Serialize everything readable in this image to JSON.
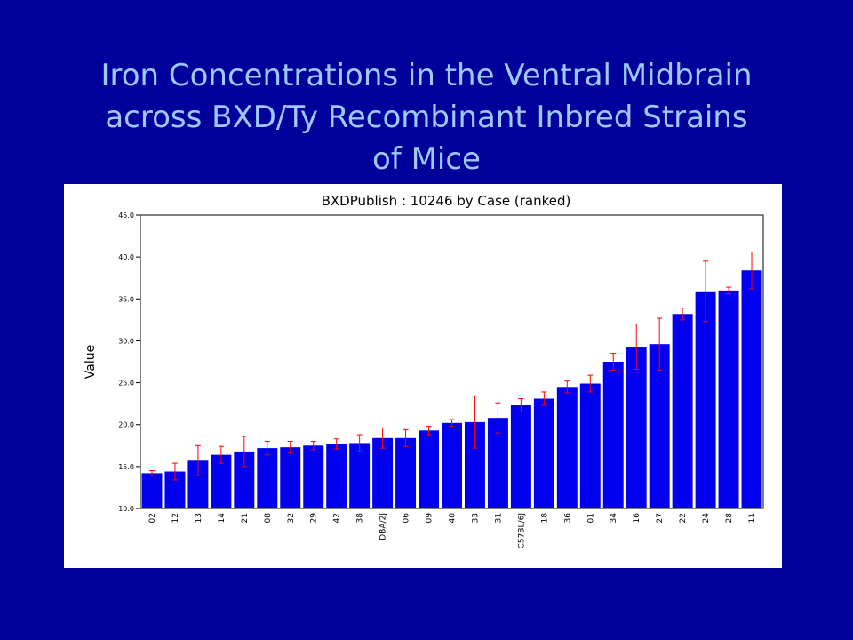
{
  "slide": {
    "title_lines": [
      "Iron Concentrations in the Ventral Midbrain",
      "across BXD/Ty Recombinant Inbred Strains",
      "of Mice"
    ]
  },
  "colors": {
    "background": "#00009a",
    "title": "#9ec8ff",
    "bar": "#0000ee",
    "error_bar": "#ff0000"
  },
  "chart_data": {
    "type": "bar",
    "title": "BXDPublish : 10246 by Case (ranked)",
    "xlabel": "",
    "ylabel": "Value",
    "ylim": [
      10,
      45
    ],
    "yticks": [
      "10.0",
      "15.0",
      "20.0",
      "25.0",
      "30.0",
      "35.0",
      "40.0",
      "45.0"
    ],
    "grid": false,
    "categories": [
      "02",
      "12",
      "13",
      "14",
      "21",
      "08",
      "32",
      "29",
      "42",
      "38",
      "DBA/2J",
      "06",
      "09",
      "40",
      "33",
      "31",
      "C57BL/6J",
      "18",
      "36",
      "01",
      "34",
      "16",
      "27",
      "22",
      "24",
      "28",
      "11"
    ],
    "values": [
      14.2,
      14.4,
      15.7,
      16.4,
      16.8,
      17.2,
      17.3,
      17.5,
      17.7,
      17.8,
      18.4,
      18.4,
      19.3,
      20.2,
      20.3,
      20.8,
      22.3,
      23.1,
      24.5,
      24.9,
      27.5,
      29.3,
      29.6,
      33.2,
      35.9,
      36.0,
      38.4
    ],
    "error": [
      0.3,
      1.0,
      1.8,
      1.0,
      1.8,
      0.8,
      0.7,
      0.5,
      0.6,
      1.0,
      1.2,
      1.0,
      0.5,
      0.4,
      3.1,
      1.8,
      0.8,
      0.8,
      0.7,
      1.0,
      1.0,
      2.7,
      3.1,
      0.7,
      3.6,
      0.4,
      2.2
    ]
  }
}
